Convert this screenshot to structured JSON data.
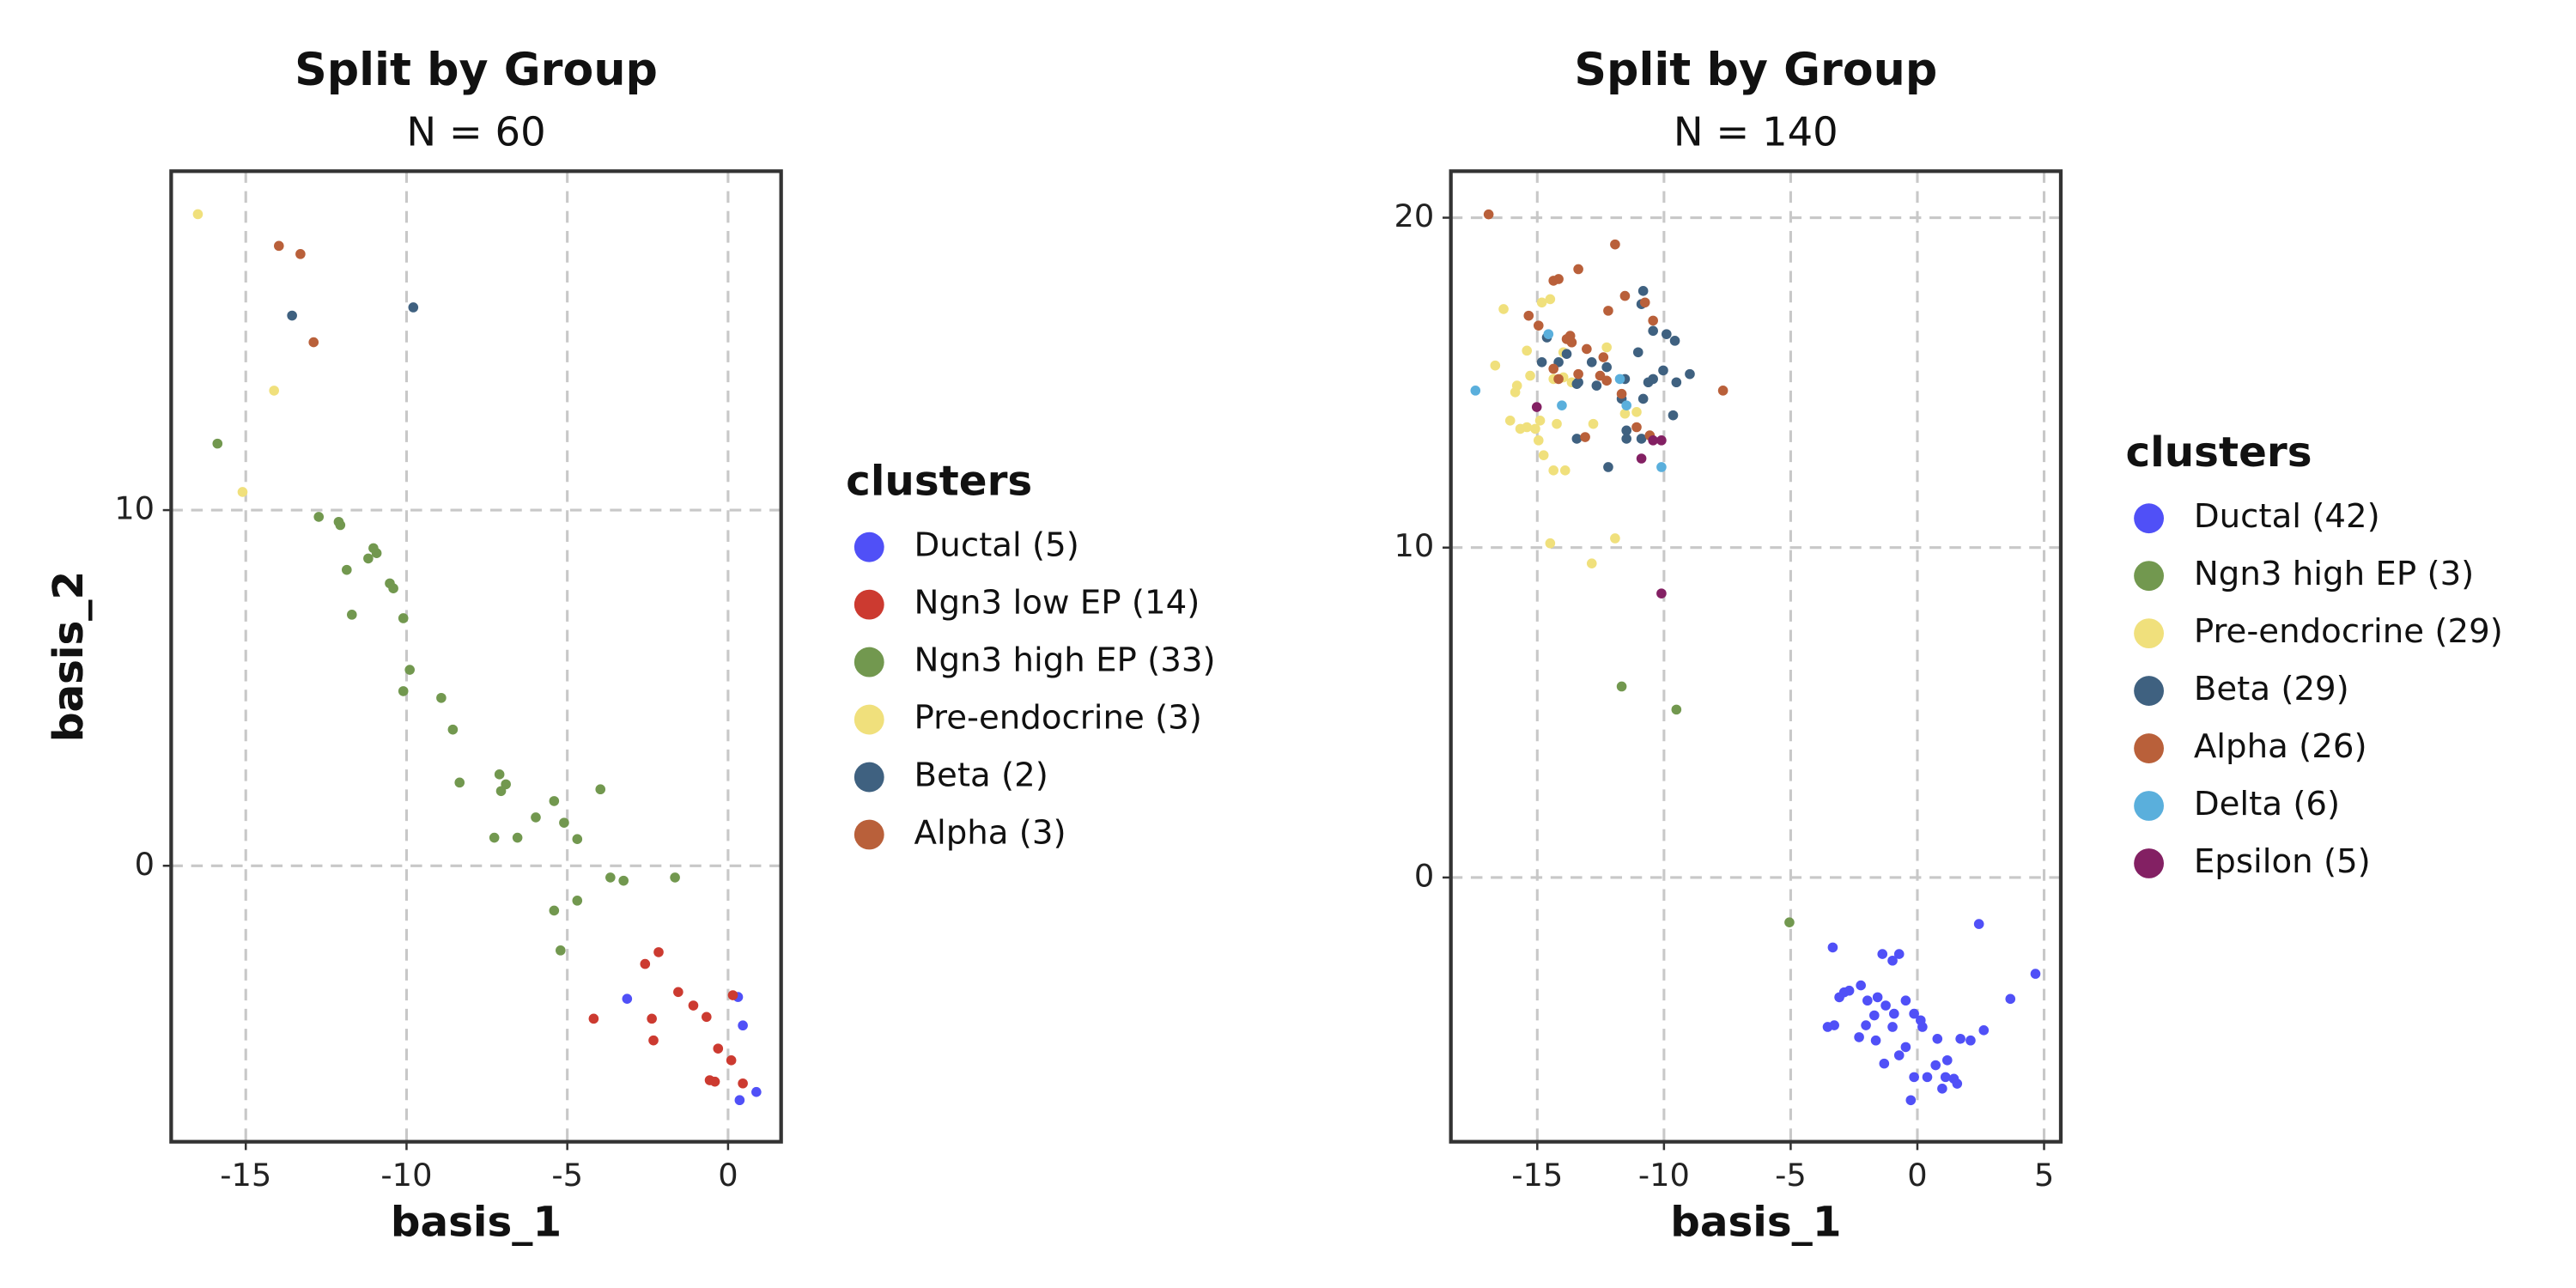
{
  "chart_data": [
    {
      "type": "scatter",
      "title": "Split by Group",
      "subtitle": "N = 60",
      "x_label": "basis_1",
      "y_label": "basis_2",
      "legend_title": "clusters",
      "legend_position": "right",
      "grid": true,
      "xlim": [
        -17.32,
        1.65
      ],
      "ylim": [
        -7.76,
        19.53
      ],
      "xticks": [
        -15,
        -10,
        -5,
        0
      ],
      "yticks": [
        0,
        10
      ],
      "series": [
        {
          "name": "Ductal (5)",
          "color": "#5050f7",
          "x": [
            -3.14,
            0.31,
            0.46,
            0.36,
            0.88
          ],
          "values": [
            -3.74,
            -3.69,
            -4.49,
            -6.59,
            -6.36
          ]
        },
        {
          "name": "Ngn3 low EP (14)",
          "color": "#cc3a30",
          "x": [
            -4.18,
            -2.58,
            -2.16,
            -2.37,
            -2.32,
            -1.55,
            -1.08,
            -0.67,
            -0.31,
            -0.57,
            -0.41,
            0.1,
            0.15,
            0.46
          ],
          "values": [
            -4.3,
            -2.76,
            -2.43,
            -4.3,
            -4.91,
            -3.55,
            -3.93,
            -4.25,
            -5.14,
            -6.03,
            -6.07,
            -5.47,
            -3.64,
            -6.12
          ]
        },
        {
          "name": "Ngn3 high EP (33)",
          "color": "#72984f",
          "x": [
            -15.88,
            -12.73,
            -12.11,
            -12.06,
            -11.19,
            -11.03,
            -10.93,
            -11.86,
            -10.52,
            -10.41,
            -10.1,
            -9.9,
            -10.1,
            -8.92,
            -8.56,
            -8.35,
            -7.11,
            -6.91,
            -7.06,
            -7.27,
            -6.55,
            -5.98,
            -5.41,
            -5.1,
            -4.69,
            -3.97,
            -3.66,
            -3.25,
            -1.65,
            -4.69,
            -5.41,
            -5.21,
            -11.7
          ],
          "values": [
            11.87,
            9.81,
            9.67,
            9.58,
            8.64,
            8.93,
            8.79,
            8.32,
            7.94,
            7.8,
            6.96,
            5.51,
            4.91,
            4.72,
            3.83,
            2.34,
            2.57,
            2.29,
            2.1,
            0.79,
            0.79,
            1.36,
            1.82,
            1.21,
            0.75,
            2.15,
            -0.33,
            -0.42,
            -0.33,
            -0.98,
            -1.26,
            -2.38,
            7.06
          ]
        },
        {
          "name": "Pre-endocrine (3)",
          "color": "#f0e07c",
          "x": [
            -16.49,
            -14.12,
            -15.1
          ],
          "values": [
            18.32,
            13.36,
            10.51
          ]
        },
        {
          "name": "Beta (2)",
          "color": "#3f6180",
          "x": [
            -13.56,
            -9.79
          ],
          "values": [
            15.47,
            15.7
          ]
        },
        {
          "name": "Alpha (3)",
          "color": "#b9603a",
          "x": [
            -13.97,
            -13.3,
            -12.89
          ],
          "values": [
            17.43,
            17.2,
            14.72
          ]
        }
      ]
    },
    {
      "type": "scatter",
      "title": "Split by Group",
      "subtitle": "N = 140",
      "x_label": "basis_1",
      "y_label": "basis_2",
      "legend_title": "clusters",
      "legend_position": "right",
      "grid": true,
      "xlim": [
        -18.41,
        5.66
      ],
      "ylim": [
        -8.01,
        21.41
      ],
      "xticks": [
        -15,
        -10,
        -5,
        0,
        5
      ],
      "yticks": [
        0,
        10,
        20
      ],
      "series": [
        {
          "name": "Ductal (42)",
          "color": "#5050f7",
          "x": [
            -3.34,
            2.43,
            4.66,
            3.67,
            -1.38,
            -0.72,
            -3.08,
            -2.89,
            -2.69,
            -2.23,
            -1.97,
            -1.57,
            -1.25,
            -1.7,
            -2.03,
            -3.54,
            -3.28,
            -2.3,
            -0.98,
            -0.92,
            -0.46,
            -0.13,
            0.13,
            0.2,
            0.79,
            1.18,
            0.72,
            1.11,
            1.44,
            1.57,
            0.98,
            0.39,
            -0.13,
            -0.72,
            -1.31,
            -0.26,
            1.7,
            2.1,
            2.62,
            -0.98,
            -0.46,
            -1.64
          ],
          "values": [
            -2.12,
            -1.41,
            -2.92,
            -3.68,
            -2.32,
            -2.32,
            -3.63,
            -3.48,
            -3.43,
            -3.27,
            -3.73,
            -3.63,
            -3.88,
            -4.18,
            -4.48,
            -4.53,
            -4.48,
            -4.84,
            -4.53,
            -4.13,
            -3.73,
            -4.13,
            -4.33,
            -4.53,
            -4.89,
            -5.54,
            -5.69,
            -6.05,
            -6.1,
            -6.25,
            -6.4,
            -6.05,
            -6.05,
            -5.39,
            -5.64,
            -6.75,
            -4.89,
            -4.94,
            -4.63,
            -2.52,
            -5.14,
            -4.94
          ]
        },
        {
          "name": "Ngn3 high EP (3)",
          "color": "#72984f",
          "x": [
            -5.05,
            -9.51,
            -11.67
          ],
          "values": [
            -1.36,
            5.09,
            5.79
          ]
        },
        {
          "name": "Pre-endocrine (29)",
          "color": "#f0e07c",
          "x": [
            -16.33,
            -15.41,
            -14.49,
            -14.82,
            -16.66,
            -15.87,
            -15.8,
            -15.28,
            -14.36,
            -13.97,
            -13.64,
            -16.07,
            -15.67,
            -15.41,
            -15.08,
            -14.89,
            -14.95,
            -14.75,
            -14.36,
            -13.9,
            -14.23,
            -14.49,
            -12.85,
            -11.93,
            -13.97,
            -12.26,
            -11.54,
            -12.79,
            -11.08
          ],
          "values": [
            17.23,
            15.97,
            17.53,
            17.43,
            15.52,
            14.71,
            14.91,
            15.21,
            15.11,
            15.16,
            15.01,
            13.85,
            13.6,
            13.65,
            13.6,
            13.85,
            13.25,
            12.8,
            12.34,
            12.34,
            13.75,
            10.13,
            9.52,
            10.28,
            15.92,
            16.07,
            14.06,
            13.75,
            14.11
          ]
        },
        {
          "name": "Beta (29)",
          "color": "#3f6180",
          "x": [
            -10.82,
            -10.89,
            -10.43,
            -9.9,
            -9.57,
            -8.98,
            -9.51,
            -9.64,
            -10.03,
            -10.62,
            -11.54,
            -12.26,
            -12.85,
            -13.84,
            -14.16,
            -14.82,
            -14.62,
            -13.38,
            -12.66,
            -11.67,
            -10.82,
            -10.43,
            -11.02,
            -11.48,
            -12.2,
            -11.48,
            -13.44,
            -10.89,
            -13.44
          ],
          "values": [
            17.78,
            17.38,
            16.57,
            16.47,
            16.27,
            15.26,
            15.01,
            14.01,
            15.37,
            15.01,
            15.11,
            15.47,
            15.62,
            15.87,
            15.62,
            15.62,
            16.37,
            15.01,
            14.91,
            14.51,
            14.51,
            15.11,
            15.92,
            13.55,
            12.44,
            13.3,
            13.3,
            13.3,
            14.96
          ]
        },
        {
          "name": "Alpha (26)",
          "color": "#b9603a",
          "x": [
            -16.92,
            -15.34,
            -14.36,
            -14.16,
            -13.38,
            -11.93,
            -11.54,
            -12.2,
            -10.75,
            -10.43,
            -7.67,
            -13.84,
            -13.7,
            -13.05,
            -12.39,
            -12.52,
            -13.38,
            -14.16,
            -14.36,
            -12.26,
            -13.11,
            -11.67,
            -11.08,
            -10.56,
            -13.64,
            -14.95
          ],
          "values": [
            20.1,
            17.03,
            18.09,
            18.14,
            18.44,
            19.19,
            17.63,
            17.18,
            17.43,
            16.88,
            14.76,
            16.32,
            16.42,
            16.02,
            15.77,
            15.21,
            15.26,
            15.11,
            15.42,
            15.06,
            13.35,
            14.66,
            13.65,
            13.4,
            16.22,
            16.73
          ]
        },
        {
          "name": "Delta (6)",
          "color": "#5aafdc",
          "x": [
            -17.44,
            -14.56,
            -14.03,
            -11.48,
            -10.1,
            -11.74
          ],
          "values": [
            14.76,
            16.47,
            14.31,
            14.31,
            12.44,
            15.11
          ]
        },
        {
          "name": "Epsilon (5)",
          "color": "#832063",
          "x": [
            -15.02,
            -10.89,
            -10.43,
            -10.1,
            -10.1
          ],
          "values": [
            14.26,
            12.7,
            13.25,
            13.25,
            8.61
          ]
        }
      ]
    }
  ]
}
